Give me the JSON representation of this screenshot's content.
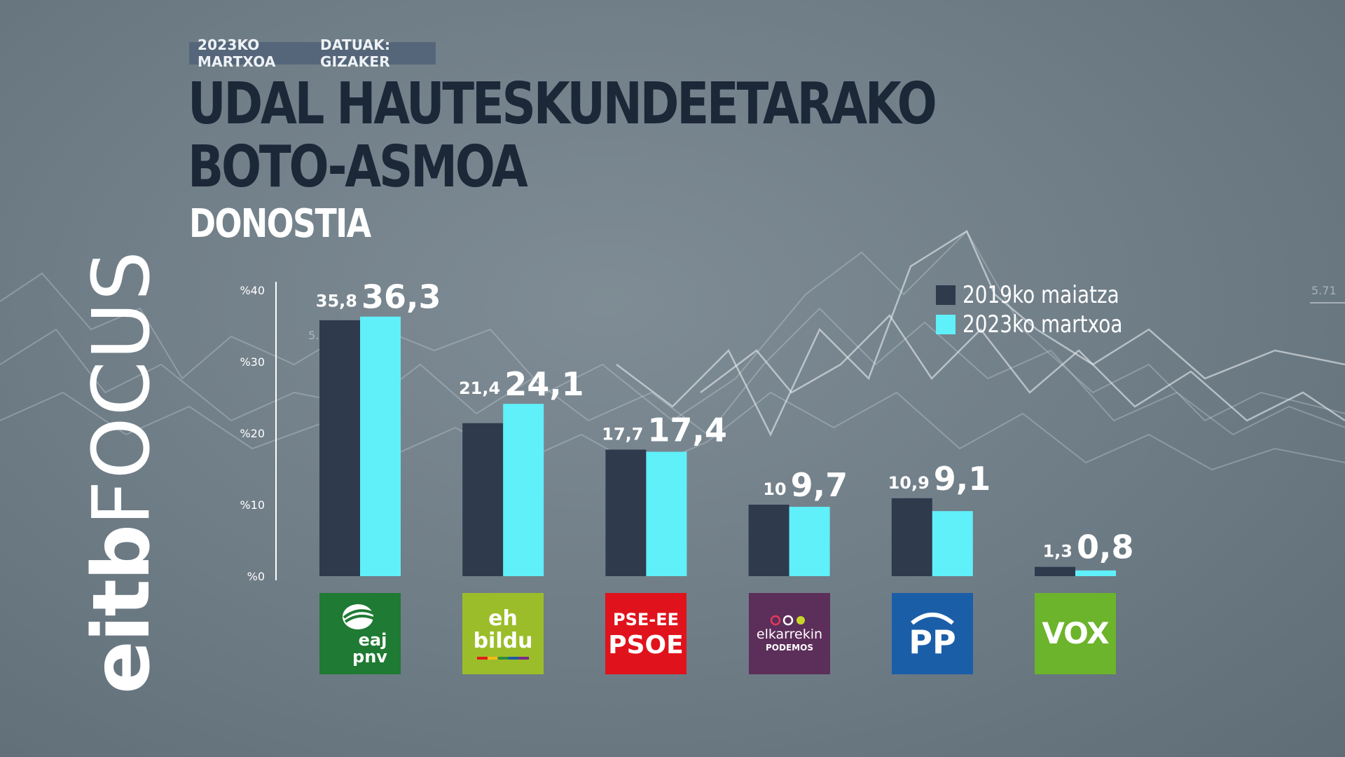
{
  "header": {
    "date_tag": "2023KO MARTXOA",
    "source_tag": "DATUAK: GIZAKER",
    "title_line1": "UDAL HAUTESKUNDEETARAKO",
    "title_line2": "BOTO-ASMOA",
    "subtitle": "DONOSTIA"
  },
  "brand": {
    "part1": "eitb",
    "part2": "FOCUS"
  },
  "colors": {
    "series_2019": "#2f3a4d",
    "series_2023": "#5ff0fa",
    "axis": "#ffffff",
    "title": "#1c2738"
  },
  "chart_data": {
    "type": "bar",
    "title": "UDAL HAUTESKUNDEETARAKO BOTO-ASMOA",
    "subtitle": "DONOSTIA",
    "categories": [
      "EAJ-PNV",
      "EH Bildu",
      "PSE-EE PSOE",
      "Elkarrekin Podemos",
      "PP",
      "VOX"
    ],
    "series": [
      {
        "name": "2019ko maiatza",
        "values": [
          35.8,
          21.4,
          17.7,
          10,
          10.9,
          1.3
        ],
        "labels": [
          "35,8",
          "21,4",
          "17,7",
          "10",
          "10,9",
          "1,3"
        ]
      },
      {
        "name": "2023ko martxoa",
        "values": [
          36.3,
          24.1,
          17.4,
          9.7,
          9.1,
          0.8
        ],
        "labels": [
          "36,3",
          "24,1",
          "17,4",
          "9,7",
          "9,1",
          "0,8"
        ]
      }
    ],
    "y_ticks": [
      "%0",
      "%10",
      "%20",
      "%30",
      "%40"
    ],
    "ylim": [
      0,
      40
    ],
    "legend_position": "top-right",
    "grid": false
  },
  "logos": {
    "pnv": {
      "line1": "eaj",
      "line2": "pnv"
    },
    "bildu": {
      "line1": "eh",
      "line2": "bildu"
    },
    "psoe": {
      "line1": "PSE-EE",
      "line2": "PSOE"
    },
    "podemos": {
      "line1": "elkarrekin",
      "line2": "PODEMOS"
    },
    "pp": {
      "text": "PP"
    },
    "vox": {
      "text": "VOX"
    }
  }
}
